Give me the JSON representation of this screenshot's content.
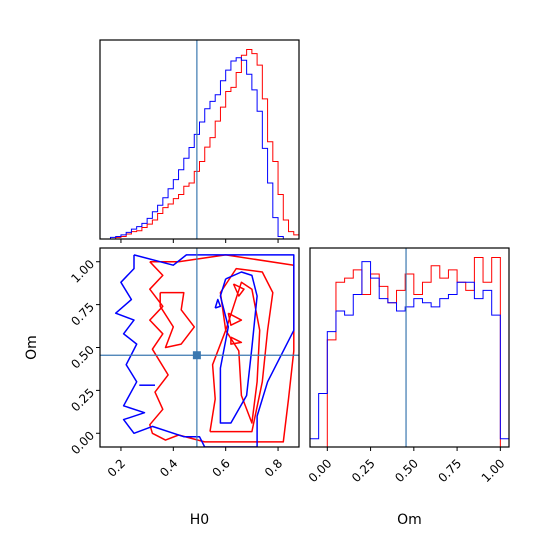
{
  "chart_data": [
    {
      "type": "histogram",
      "xlabel": "",
      "xlim": [
        0.12,
        0.88
      ],
      "xticks": [
        0.2,
        0.4,
        0.6,
        0.8
      ],
      "truth_line": {
        "x": 0.49,
        "color": "#3b78b0"
      },
      "series": [
        {
          "color": "#ff0000",
          "bin_edges": [
            0.12,
            0.14,
            0.16,
            0.18,
            0.2,
            0.22,
            0.24,
            0.26,
            0.28,
            0.3,
            0.32,
            0.34,
            0.36,
            0.38,
            0.4,
            0.42,
            0.44,
            0.46,
            0.48,
            0.5,
            0.52,
            0.54,
            0.56,
            0.58,
            0.6,
            0.62,
            0.64,
            0.66,
            0.68,
            0.7,
            0.72,
            0.74,
            0.76,
            0.78,
            0.8,
            0.82,
            0.84,
            0.86,
            0.88
          ],
          "counts": [
            0,
            0,
            0,
            0.4,
            0.6,
            1.2,
            1.8,
            2.0,
            2.8,
            3.6,
            4.6,
            6.2,
            7.6,
            8.5,
            9.8,
            10.8,
            12.8,
            13.6,
            16.4,
            18.8,
            22.3,
            24.6,
            28.6,
            32.0,
            35.8,
            36.8,
            40.4,
            44.6,
            46.0,
            45.0,
            42.2,
            34.0,
            23.6,
            18.8,
            10.8,
            4.6,
            1.8,
            1.0
          ]
        },
        {
          "color": "#0000ff",
          "bin_edges": [
            0.12,
            0.14,
            0.16,
            0.18,
            0.2,
            0.22,
            0.24,
            0.26,
            0.28,
            0.3,
            0.32,
            0.34,
            0.36,
            0.38,
            0.4,
            0.42,
            0.44,
            0.46,
            0.48,
            0.5,
            0.52,
            0.54,
            0.56,
            0.58,
            0.6,
            0.62,
            0.64,
            0.66,
            0.68,
            0.7,
            0.72,
            0.74,
            0.76,
            0.78,
            0.8,
            0.82,
            0.84,
            0.86,
            0.88
          ],
          "counts": [
            0,
            0,
            0.4,
            0.6,
            1.0,
            1.6,
            2.4,
            3.0,
            3.8,
            5.0,
            6.6,
            8.2,
            10.0,
            12.2,
            14.4,
            16.8,
            19.6,
            22.2,
            25.4,
            28.4,
            31.6,
            33.4,
            35.0,
            38.4,
            41.0,
            43.2,
            44.0,
            43.4,
            40.0,
            36.2,
            31.0,
            22.0,
            13.6,
            5.2,
            0.6,
            0,
            0,
            0
          ]
        }
      ]
    },
    {
      "type": "contour",
      "xlabel": "H0",
      "ylabel": "Om",
      "xlim": [
        0.12,
        0.88
      ],
      "ylim": [
        -0.08,
        1.08
      ],
      "xticks": [
        0.2,
        0.4,
        0.6,
        0.8
      ],
      "yticks": [
        0.0,
        0.25,
        0.5,
        0.75,
        1.0
      ],
      "ytick_labels": [
        "0.00",
        "0.25",
        "0.50",
        "0.75",
        "1.00"
      ],
      "truth_point": {
        "x": 0.49,
        "y": 0.455,
        "color": "#3b78b0"
      },
      "contours": [
        {
          "color": "#ff0000",
          "points": [
            [
              0.31,
              1.0
            ],
            [
              0.42,
              1.0
            ],
            [
              0.6,
              1.04
            ],
            [
              0.86,
              0.98
            ],
            [
              0.86,
              0.48
            ],
            [
              0.84,
              0.2
            ],
            [
              0.82,
              -0.05
            ],
            [
              0.64,
              -0.05
            ],
            [
              0.52,
              -0.05
            ],
            [
              0.42,
              -0.01
            ],
            [
              0.37,
              -0.04
            ],
            [
              0.32,
              0.0
            ],
            [
              0.31,
              0.05
            ],
            [
              0.36,
              0.14
            ],
            [
              0.33,
              0.24
            ],
            [
              0.38,
              0.34
            ],
            [
              0.32,
              0.49
            ],
            [
              0.36,
              0.58
            ],
            [
              0.31,
              0.66
            ],
            [
              0.36,
              0.74
            ],
            [
              0.31,
              0.84
            ],
            [
              0.36,
              0.92
            ],
            [
              0.31,
              1.0
            ]
          ]
        },
        {
          "color": "#ff0000",
          "points": [
            [
              0.35,
              0.82
            ],
            [
              0.44,
              0.82
            ],
            [
              0.43,
              0.72
            ],
            [
              0.48,
              0.62
            ],
            [
              0.43,
              0.52
            ],
            [
              0.37,
              0.5
            ],
            [
              0.4,
              0.62
            ],
            [
              0.35,
              0.74
            ],
            [
              0.35,
              0.82
            ]
          ]
        },
        {
          "color": "#ff0000",
          "points": [
            [
              0.54,
              0.01
            ],
            [
              0.7,
              0.01
            ],
            [
              0.74,
              0.3
            ],
            [
              0.76,
              0.6
            ],
            [
              0.78,
              0.82
            ],
            [
              0.74,
              0.94
            ],
            [
              0.64,
              0.96
            ],
            [
              0.58,
              0.82
            ],
            [
              0.6,
              0.6
            ],
            [
              0.55,
              0.4
            ],
            [
              0.56,
              0.2
            ],
            [
              0.54,
              0.01
            ]
          ]
        },
        {
          "color": "#ff0000",
          "points": [
            [
              0.6,
              0.6
            ],
            [
              0.65,
              0.48
            ],
            [
              0.66,
              0.22
            ],
            [
              0.7,
              0.06
            ],
            [
              0.72,
              0.3
            ],
            [
              0.73,
              0.6
            ],
            [
              0.7,
              0.84
            ],
            [
              0.66,
              0.88
            ],
            [
              0.6,
              0.6
            ]
          ]
        },
        {
          "color": "#ff0000",
          "points": [
            [
              0.63,
              0.87
            ],
            [
              0.67,
              0.84
            ],
            [
              0.65,
              0.8
            ],
            [
              0.63,
              0.87
            ]
          ]
        },
        {
          "color": "#ff0000",
          "points": [
            [
              0.61,
              0.7
            ],
            [
              0.66,
              0.66
            ],
            [
              0.62,
              0.63
            ],
            [
              0.61,
              0.7
            ]
          ]
        },
        {
          "color": "#ff0000",
          "points": [
            [
              0.62,
              0.56
            ],
            [
              0.66,
              0.53
            ],
            [
              0.62,
              0.52
            ],
            [
              0.62,
              0.56
            ]
          ]
        },
        {
          "color": "#0000ff",
          "points": [
            [
              0.25,
              1.04
            ],
            [
              0.4,
              0.98
            ],
            [
              0.45,
              1.04
            ],
            [
              0.62,
              1.04
            ],
            [
              0.86,
              1.04
            ],
            [
              0.86,
              0.6
            ],
            [
              0.76,
              0.3
            ],
            [
              0.72,
              0.1
            ],
            [
              0.72,
              -0.08
            ],
            [
              0.52,
              -0.08
            ],
            [
              0.5,
              -0.02
            ],
            [
              0.44,
              -0.02
            ],
            [
              0.32,
              0.04
            ],
            [
              0.25,
              0.0
            ],
            [
              0.21,
              0.08
            ],
            [
              0.29,
              0.12
            ],
            [
              0.21,
              0.16
            ],
            [
              0.26,
              0.3
            ],
            [
              0.22,
              0.4
            ],
            [
              0.26,
              0.52
            ],
            [
              0.21,
              0.58
            ],
            [
              0.25,
              0.66
            ],
            [
              0.18,
              0.7
            ],
            [
              0.24,
              0.78
            ],
            [
              0.2,
              0.88
            ],
            [
              0.25,
              0.96
            ],
            [
              0.25,
              1.04
            ]
          ]
        },
        {
          "color": "#0000ff",
          "points": [
            [
              0.6,
              0.9
            ],
            [
              0.66,
              0.94
            ],
            [
              0.7,
              0.92
            ],
            [
              0.72,
              0.8
            ],
            [
              0.7,
              0.5
            ],
            [
              0.68,
              0.22
            ],
            [
              0.62,
              0.06
            ],
            [
              0.58,
              0.06
            ],
            [
              0.58,
              0.38
            ],
            [
              0.61,
              0.62
            ],
            [
              0.58,
              0.8
            ],
            [
              0.6,
              0.9
            ]
          ]
        },
        {
          "color": "#0000ff",
          "points": [
            [
              0.56,
              0.73
            ],
            [
              0.57,
              0.78
            ],
            [
              0.58,
              0.74
            ],
            [
              0.56,
              0.73
            ]
          ]
        },
        {
          "color": "#0000ff",
          "points": [
            [
              0.27,
              0.28
            ],
            [
              0.33,
              0.28
            ]
          ]
        }
      ]
    },
    {
      "type": "histogram",
      "xlabel": "Om",
      "xlim": [
        -0.1,
        1.05
      ],
      "xticks": [
        0.0,
        0.25,
        0.5,
        0.75,
        1.0
      ],
      "xtick_labels": [
        "0.00",
        "0.25",
        "0.50",
        "0.75",
        "1.00"
      ],
      "truth_line": {
        "x": 0.455,
        "color": "#3b78b0"
      },
      "series": [
        {
          "color": "#ff0000",
          "bin_edges": [
            -0.1,
            -0.05,
            0.0,
            0.05,
            0.1,
            0.15,
            0.2,
            0.25,
            0.3,
            0.35,
            0.4,
            0.45,
            0.5,
            0.55,
            0.6,
            0.65,
            0.7,
            0.75,
            0.8,
            0.85,
            0.9,
            0.95,
            1.0,
            1.05
          ],
          "counts": [
            0,
            0,
            26,
            40,
            41,
            43,
            37,
            42,
            39,
            35,
            38,
            42,
            37,
            40,
            44,
            41,
            43,
            40,
            38,
            46,
            40,
            46,
            0
          ]
        },
        {
          "color": "#0000ff",
          "bin_edges": [
            -0.1,
            -0.05,
            0.0,
            0.05,
            0.1,
            0.15,
            0.2,
            0.25,
            0.3,
            0.35,
            0.4,
            0.45,
            0.5,
            0.55,
            0.6,
            0.65,
            0.7,
            0.75,
            0.8,
            0.85,
            0.9,
            0.95,
            1.0,
            1.05
          ],
          "counts": [
            2,
            13,
            28,
            33,
            32,
            37,
            45,
            41,
            36,
            35,
            33,
            34,
            36,
            35,
            34,
            36,
            37,
            40,
            40,
            36,
            38,
            32,
            2
          ]
        }
      ]
    }
  ]
}
